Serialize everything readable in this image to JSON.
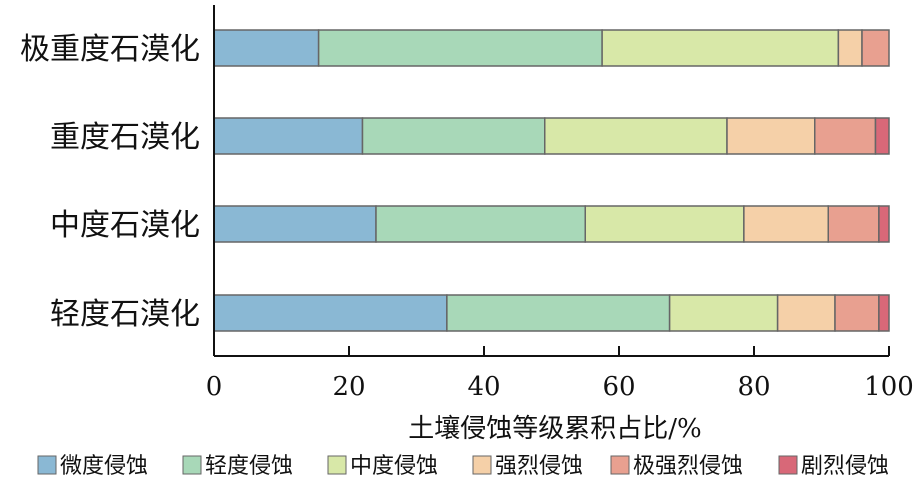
{
  "chart_data": {
    "type": "bar",
    "orientation": "horizontal",
    "stacked": true,
    "categories": [
      "极重度石漠化",
      "重度石漠化",
      "中度石漠化",
      "轻度石漠化"
    ],
    "series": [
      {
        "name": "微度侵蚀",
        "color": "#8ab8d4",
        "values": [
          15.5,
          22.0,
          24.0,
          34.5
        ]
      },
      {
        "name": "轻度侵蚀",
        "color": "#a8d8b8",
        "values": [
          42.0,
          27.0,
          31.0,
          33.0
        ]
      },
      {
        "name": "中度侵蚀",
        "color": "#d8e8a8",
        "values": [
          35.0,
          27.0,
          23.5,
          16.0
        ]
      },
      {
        "name": "强烈侵蚀",
        "color": "#f5d0a8",
        "values": [
          3.5,
          13.0,
          12.5,
          8.5
        ]
      },
      {
        "name": "极强烈侵蚀",
        "color": "#e8a090",
        "values": [
          4.0,
          9.0,
          7.5,
          6.5
        ]
      },
      {
        "name": "剧烈侵蚀",
        "color": "#d86878",
        "values": [
          0.0,
          2.0,
          1.5,
          1.5
        ]
      }
    ],
    "xlabel": "土壤侵蚀等级累积占比/%",
    "ylabel": "",
    "xlim": [
      0,
      100
    ],
    "xticks": [
      0,
      20,
      40,
      60,
      80,
      100
    ],
    "legend": "bottom",
    "grid": false
  }
}
